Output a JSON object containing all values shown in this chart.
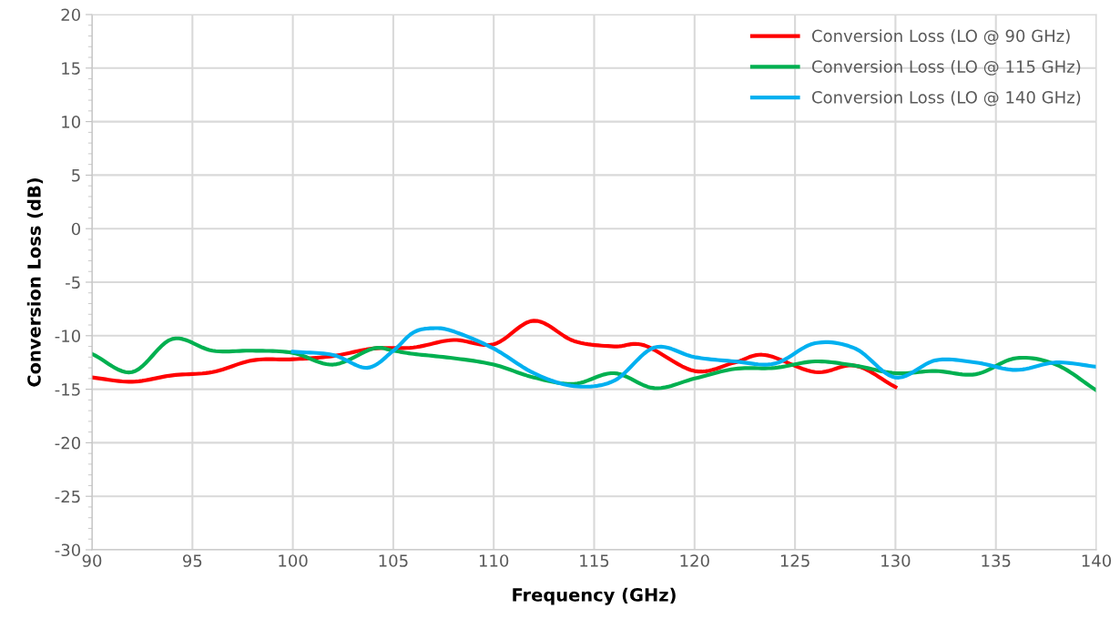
{
  "chart_data": {
    "type": "line",
    "xlabel": "Frequency (GHz)",
    "ylabel": "Conversion Loss (dB)",
    "xlim": [
      90,
      140
    ],
    "xticks": [
      90,
      95,
      100,
      105,
      110,
      115,
      120,
      125,
      130,
      135,
      140
    ],
    "ylim": [
      -30,
      20
    ],
    "yticks": [
      -30,
      -25,
      -20,
      -15,
      -10,
      -5,
      0,
      5,
      10,
      15,
      20
    ],
    "grid": true,
    "legend": "top right",
    "marker": "none",
    "line_style": "solid",
    "series": [
      {
        "name": "Conversion Loss (LO @ 90 GHz)",
        "color": "#ff0000",
        "x": [
          90,
          92,
          94,
          96,
          98,
          100,
          102,
          104,
          106,
          108,
          110,
          112,
          114,
          116,
          117.5,
          120,
          122,
          123.5,
          126,
          128,
          130
        ],
        "values": [
          -13.9,
          -14.3,
          -13.7,
          -13.4,
          -12.3,
          -12.2,
          -11.9,
          -11.2,
          -11.1,
          -10.4,
          -10.8,
          -8.6,
          -10.5,
          -11.0,
          -10.9,
          -13.3,
          -12.5,
          -11.8,
          -13.4,
          -12.8,
          -14.8
        ]
      },
      {
        "name": "Conversion Loss (LO @ 115 GHz)",
        "color": "#00b050",
        "x": [
          90,
          92,
          94,
          96,
          98,
          100,
          102,
          104,
          105,
          106,
          108,
          110,
          112,
          114,
          116,
          118,
          120,
          122,
          124,
          126,
          128,
          130,
          132,
          134,
          136,
          138,
          140
        ],
        "values": [
          -11.7,
          -13.4,
          -10.3,
          -11.4,
          -11.4,
          -11.6,
          -12.7,
          -11.2,
          -11.4,
          -11.7,
          -12.1,
          -12.7,
          -13.9,
          -14.5,
          -13.5,
          -14.9,
          -14.0,
          -13.1,
          -13.0,
          -12.4,
          -12.8,
          -13.5,
          -13.3,
          -13.6,
          -12.1,
          -12.7,
          -15.1
        ]
      },
      {
        "name": "Conversion Loss (LO @ 140 GHz)",
        "color": "#00b0f0",
        "x": [
          100,
          102,
          103.7,
          105,
          106,
          107,
          108,
          110,
          112,
          114,
          116,
          118,
          120,
          122,
          124,
          126,
          128,
          130,
          132,
          134,
          136,
          138,
          140
        ],
        "values": [
          -11.5,
          -11.8,
          -13.0,
          -11.4,
          -9.7,
          -9.3,
          -9.6,
          -11.2,
          -13.5,
          -14.7,
          -14.2,
          -11.1,
          -12.0,
          -12.4,
          -12.6,
          -10.7,
          -11.2,
          -13.9,
          -12.3,
          -12.5,
          -13.2,
          -12.5,
          -12.9
        ]
      }
    ]
  }
}
